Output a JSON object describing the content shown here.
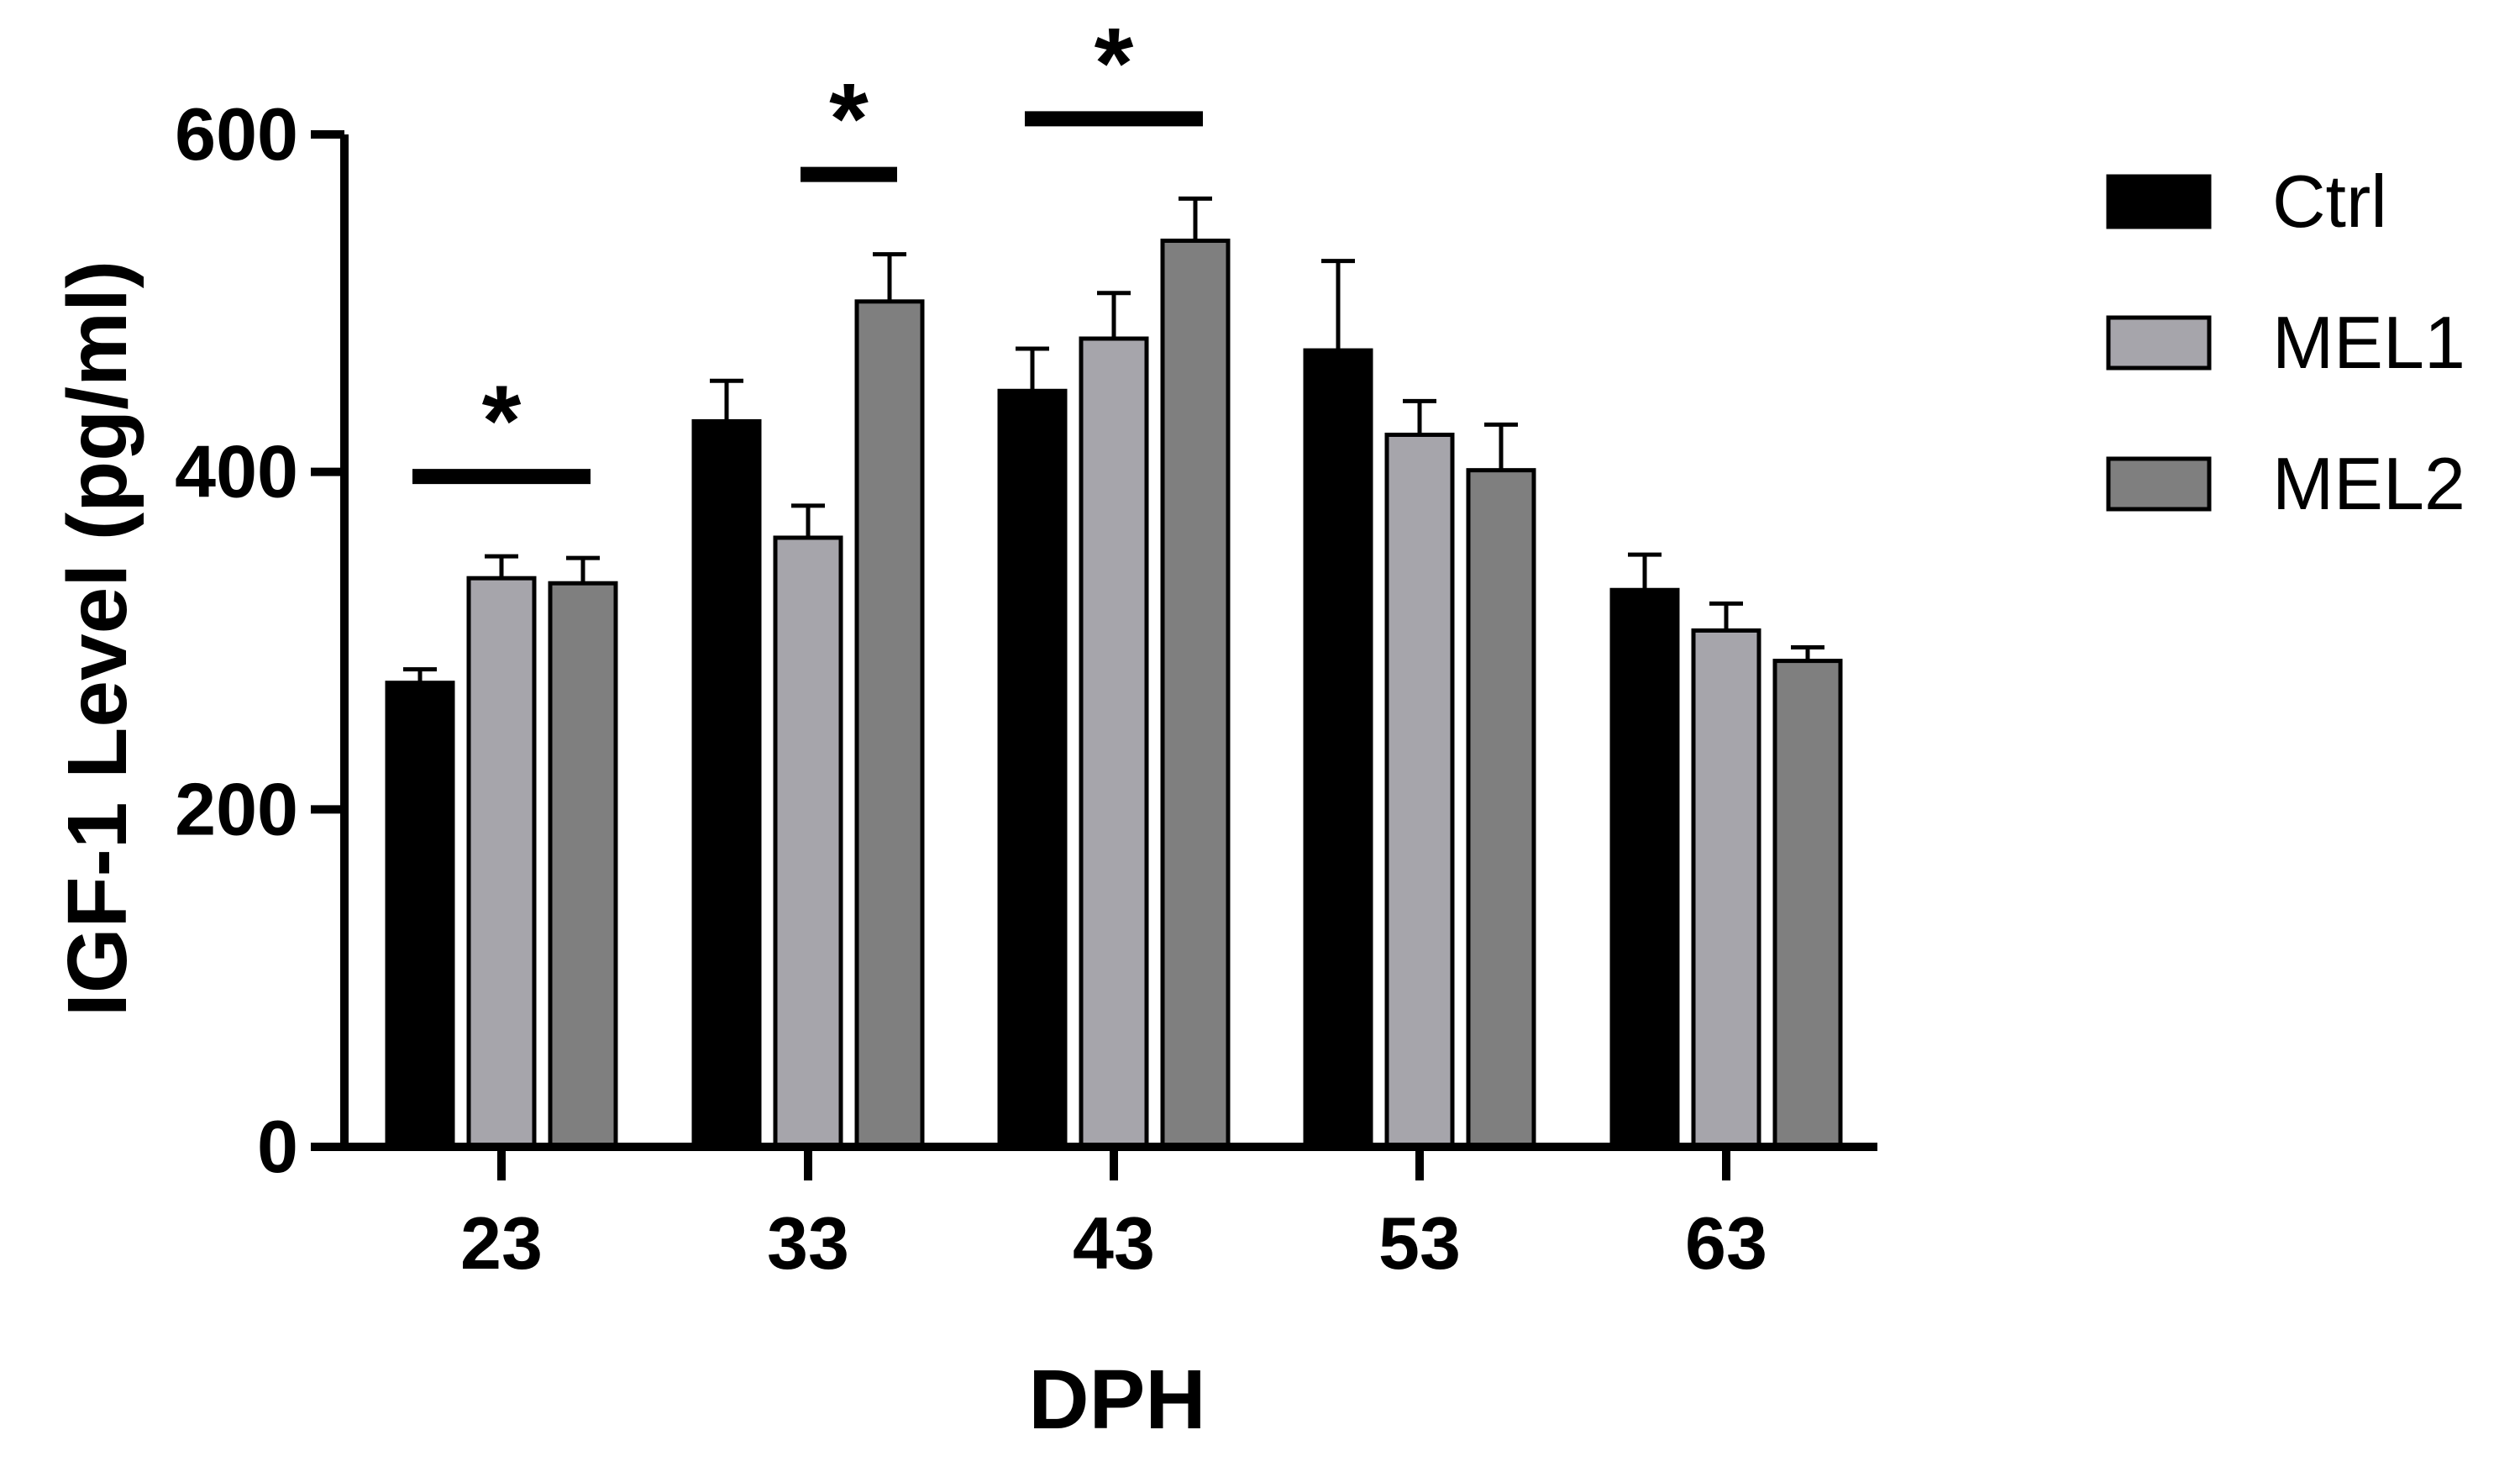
{
  "chart_data": {
    "type": "bar",
    "xlabel": "DPH",
    "ylabel": "IGF-1 Level (pg/ml)",
    "categories": [
      "23",
      "33",
      "43",
      "53",
      "63"
    ],
    "ylim": [
      0,
      600
    ],
    "yticks": [
      0,
      200,
      400,
      600
    ],
    "grid": false,
    "legend_position": "top-right",
    "error_bars": "upper",
    "series": [
      {
        "name": "Ctrl",
        "color": "#000000",
        "values": [
          275,
          430,
          448,
          472,
          330
        ],
        "errors": [
          8,
          24,
          25,
          53,
          21
        ]
      },
      {
        "name": "MEL1",
        "color": "#a6a5ab",
        "values": [
          337,
          361,
          479,
          422,
          306
        ],
        "errors": [
          13,
          19,
          27,
          20,
          16
        ]
      },
      {
        "name": "MEL2",
        "color": "#7f7f7f",
        "values": [
          334,
          501,
          537,
          401,
          288
        ],
        "errors": [
          15,
          28,
          25,
          27,
          8
        ]
      }
    ],
    "significance": [
      {
        "category": "23",
        "from_series": 0,
        "to_series": 2,
        "label": "*"
      },
      {
        "category": "33",
        "from_series": 1,
        "to_series": 2,
        "label": "*"
      },
      {
        "category": "43",
        "from_series": 0,
        "to_series": 2,
        "label": "*"
      }
    ]
  }
}
